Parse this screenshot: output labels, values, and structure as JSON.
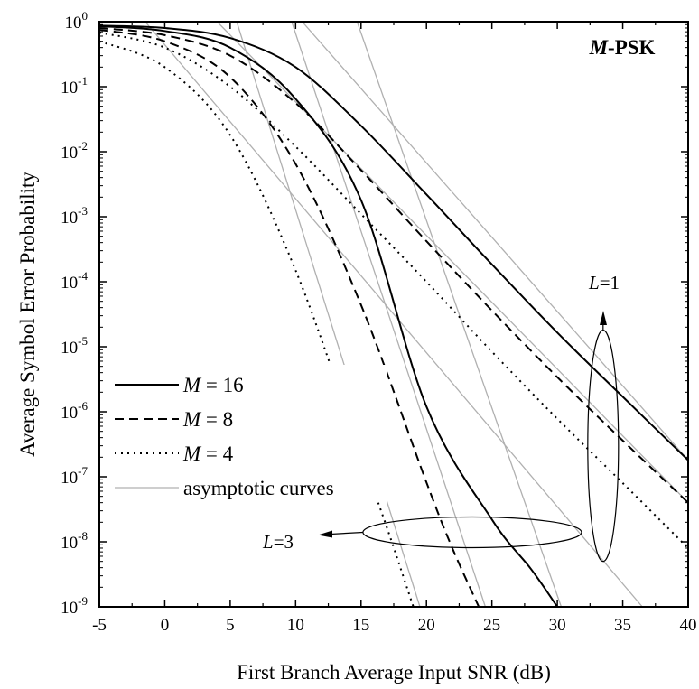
{
  "chart_data": {
    "type": "line",
    "title": "M-PSK",
    "title_parts": {
      "italic": "M",
      "rest": "-PSK"
    },
    "xlabel": "First Branch Average Input SNR (dB)",
    "ylabel": "Average Symbol Error Probability",
    "xlim": [
      -5,
      40
    ],
    "ylim": [
      1e-09,
      1
    ],
    "yscale": "log",
    "grid": false,
    "x_ticks": [
      -5,
      0,
      5,
      10,
      15,
      20,
      25,
      30,
      35,
      40
    ],
    "x_tick_labels": [
      "-5",
      "0",
      "5",
      "10",
      "15",
      "20",
      "25",
      "30",
      "35",
      "40"
    ],
    "y_ticks": [
      {
        "value": 1,
        "base": "10",
        "exp": "0"
      },
      {
        "value": 0.1,
        "base": "10",
        "exp": "-1"
      },
      {
        "value": 0.01,
        "base": "10",
        "exp": "-2"
      },
      {
        "value": 0.001,
        "base": "10",
        "exp": "-3"
      },
      {
        "value": 0.0001,
        "base": "10",
        "exp": "-4"
      },
      {
        "value": 1e-05,
        "base": "10",
        "exp": "-5"
      },
      {
        "value": 1e-06,
        "base": "10",
        "exp": "-6"
      },
      {
        "value": 1e-07,
        "base": "10",
        "exp": "-7"
      },
      {
        "value": 1e-08,
        "base": "10",
        "exp": "-8"
      },
      {
        "value": 1e-09,
        "base": "10",
        "exp": "-9"
      }
    ],
    "legend": {
      "placement": "lower-left",
      "entries": [
        {
          "label_italic": "M",
          "label_rest": " = 16",
          "style": "solid",
          "color": "#000000"
        },
        {
          "label_italic": "M",
          "label_rest": " = 8",
          "style": "dashed",
          "color": "#000000"
        },
        {
          "label_italic": "M",
          "label_rest": " = 4",
          "style": "dotted",
          "color": "#000000"
        },
        {
          "label_italic": "",
          "label_rest": "asymptotic curves",
          "style": "thin",
          "color": "#b0b0b0"
        }
      ]
    },
    "annotations": [
      {
        "text_italic": "L",
        "text_rest": "=1"
      },
      {
        "text_italic": "L",
        "text_rest": "=3"
      }
    ],
    "series": [
      {
        "group": "L=1",
        "m": "M=16",
        "style": "solid",
        "x": [
          -5,
          0,
          5,
          10,
          15,
          20,
          25,
          30,
          35,
          40
        ],
        "y": [
          0.87,
          0.8,
          0.56,
          0.2,
          0.025,
          0.0022,
          0.000185,
          1.65e-05,
          1.7e-06,
          1.8e-07
        ]
      },
      {
        "group": "L=1",
        "m": "M=8",
        "style": "dashed",
        "x": [
          -5,
          0,
          5,
          10,
          15,
          20,
          25,
          30,
          35,
          40
        ],
        "y": [
          0.8,
          0.62,
          0.3,
          0.056,
          0.0052,
          0.00042,
          3.6e-05,
          3.4e-06,
          3.6e-07,
          4e-08
        ]
      },
      {
        "group": "L=1",
        "m": "M=4",
        "style": "dotted",
        "x": [
          -5,
          0,
          5,
          10,
          15,
          20,
          25,
          30,
          35,
          40
        ],
        "y": [
          0.68,
          0.4,
          0.1,
          0.012,
          0.0011,
          0.0001,
          8.4e-06,
          7.8e-07,
          8e-08,
          8e-09
        ]
      },
      {
        "group": "L=3",
        "m": "M=16",
        "style": "solid",
        "x": [
          -5,
          0,
          5,
          10,
          15,
          20,
          25,
          28,
          30
        ],
        "y": [
          0.85,
          0.72,
          0.4,
          0.065,
          0.0018,
          1.2e-06,
          2.2e-08,
          3.8e-09,
          1e-09
        ]
      },
      {
        "group": "L=3",
        "m": "M=8",
        "style": "dashed",
        "x": [
          -5,
          0,
          5,
          10,
          15,
          20,
          22,
          24
        ],
        "y": [
          0.75,
          0.5,
          0.14,
          0.0065,
          4.4e-05,
          8.2e-08,
          7.8e-09,
          1e-09
        ]
      },
      {
        "group": "L=3",
        "m": "M=4",
        "style": "dotted",
        "x": [
          -5,
          0,
          5,
          10,
          15,
          17,
          19
        ],
        "y": [
          0.5,
          0.2,
          0.018,
          0.00015,
          2.2e-07,
          1.6e-08,
          1e-09
        ]
      }
    ],
    "asymptotes": [
      {
        "group": "L=1",
        "m": "M=16",
        "x": [
          10.5,
          40
        ],
        "y": [
          1,
          1.8e-07
        ]
      },
      {
        "group": "L=1",
        "m": "M=8",
        "x": [
          4,
          40
        ],
        "y": [
          1,
          4e-08
        ]
      },
      {
        "group": "L=1",
        "m": "M=4",
        "x": [
          -1.5,
          36.5
        ],
        "y": [
          1,
          1e-09
        ]
      },
      {
        "group": "L=3",
        "m": "M=16",
        "x": [
          14.7,
          30.3
        ],
        "y": [
          1,
          1e-09
        ]
      },
      {
        "group": "L=3",
        "m": "M=8",
        "x": [
          9.7,
          24.5
        ],
        "y": [
          1,
          1e-09
        ]
      },
      {
        "group": "L=3",
        "m": "M=4",
        "x": [
          5.5,
          19.5
        ],
        "y": [
          1,
          1e-09
        ]
      }
    ]
  }
}
